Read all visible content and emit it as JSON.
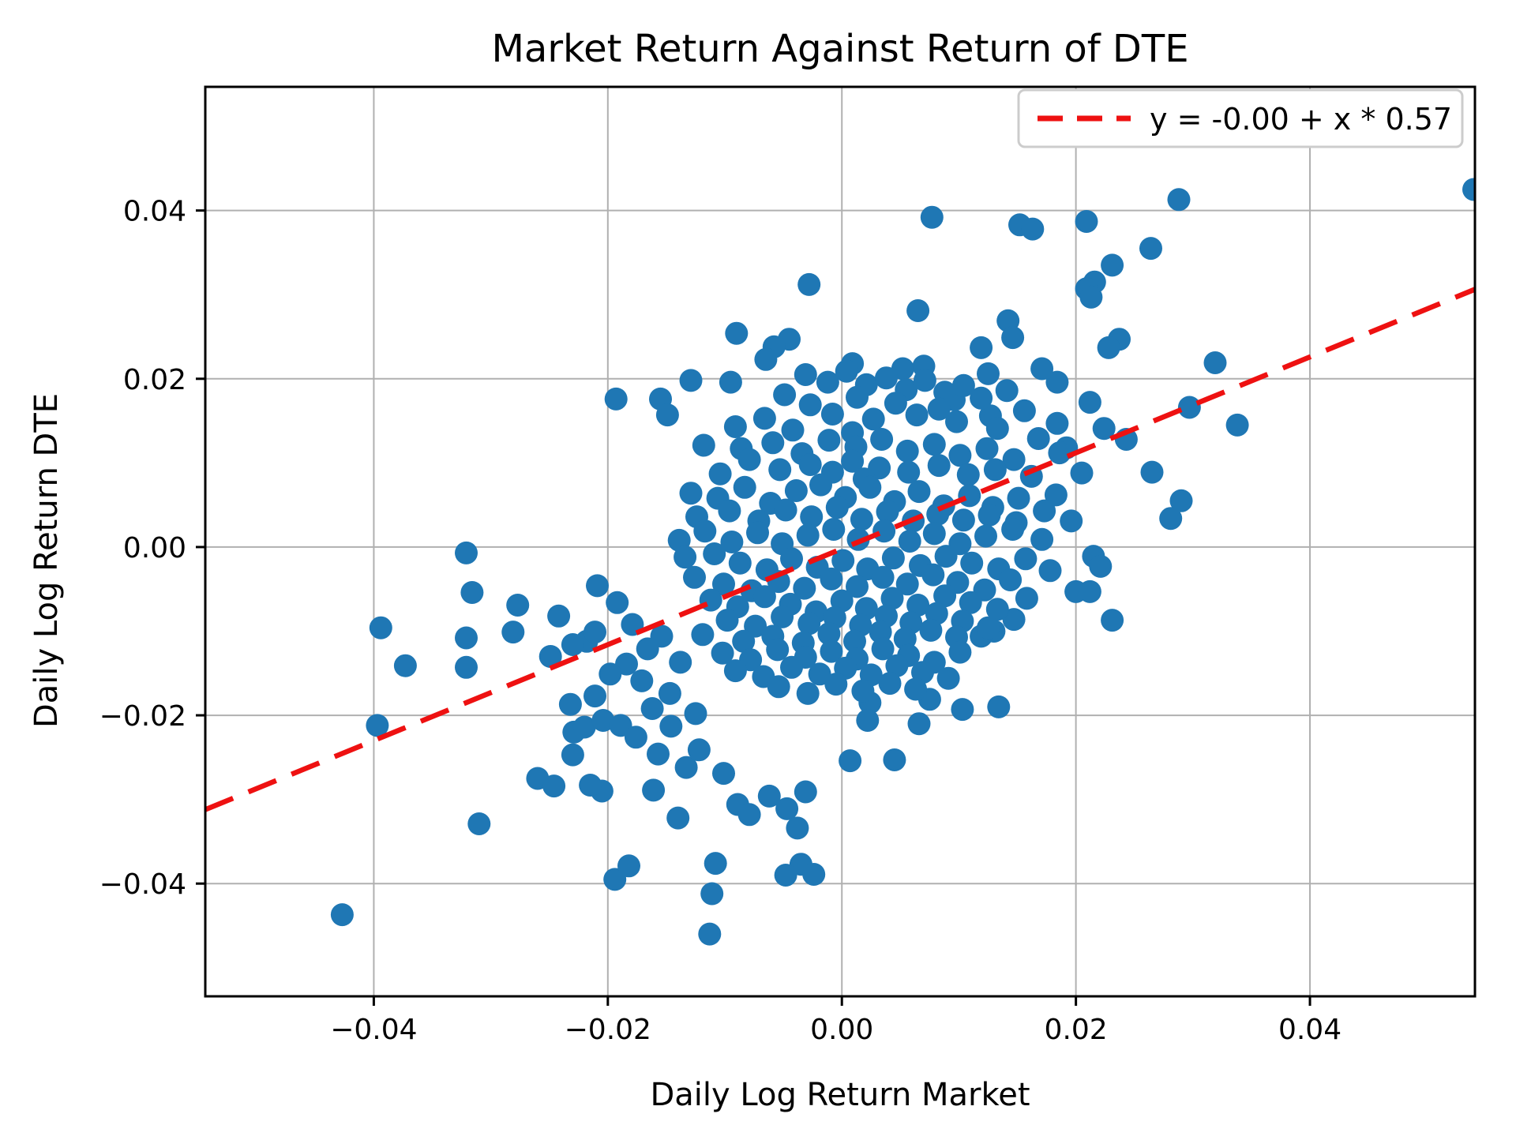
{
  "chart_data": {
    "type": "scatter",
    "title": "Market Return Against Return of DTE",
    "xlabel": "Daily Log Return Market",
    "ylabel": "Daily Log Return DTE",
    "xlim": [
      -0.0544,
      0.0541
    ],
    "ylim": [
      -0.0534,
      0.0547
    ],
    "xticks": [
      -0.04,
      -0.02,
      0.0,
      0.02,
      0.04
    ],
    "yticks": [
      -0.04,
      -0.02,
      0.0,
      0.02,
      0.04
    ],
    "grid": true,
    "grid_color": "#b0b0b0",
    "marker_color": "#1f77b4",
    "legend": {
      "label": "y = -0.00 + x * 0.57",
      "position": "upper right"
    },
    "trend": {
      "intercept": -0.0002,
      "slope": 0.57,
      "color": "#ee1111",
      "style": "dashed"
    },
    "points": [
      [
        0.054,
        0.0425
      ],
      [
        0.0288,
        0.0413
      ],
      [
        0.0077,
        0.0392
      ],
      [
        0.0209,
        0.0387
      ],
      [
        0.0152,
        0.0383
      ],
      [
        0.0163,
        0.0378
      ],
      [
        0.0264,
        0.0355
      ],
      [
        0.0231,
        0.0335
      ],
      [
        0.0216,
        0.0315
      ],
      [
        0.0209,
        0.0307
      ],
      [
        0.0213,
        0.0297
      ],
      [
        -0.0028,
        0.0312
      ],
      [
        0.0065,
        0.0281
      ],
      [
        0.0142,
        0.0269
      ],
      [
        0.0146,
        0.0249
      ],
      [
        0.0119,
        0.0237
      ],
      [
        0.0237,
        0.0247
      ],
      [
        0.0228,
        0.0237
      ],
      [
        0.0319,
        0.0219
      ],
      [
        0.0338,
        0.0145
      ],
      [
        0.029,
        0.0055
      ],
      [
        0.0281,
        0.0034
      ],
      [
        0.0265,
        0.0089
      ],
      [
        0.0297,
        0.0166
      ],
      [
        0.0224,
        0.0141
      ],
      [
        0.0243,
        0.0128
      ],
      [
        0.0212,
        0.0172
      ],
      [
        0.0184,
        0.0196
      ],
      [
        0.007,
        0.0215
      ],
      [
        0.0052,
        0.0212
      ],
      [
        0.0009,
        0.0218
      ],
      [
        -0.0045,
        0.0247
      ],
      [
        -0.0058,
        0.0238
      ],
      [
        -0.0065,
        0.0223
      ],
      [
        -0.0095,
        0.0196
      ],
      [
        -0.0129,
        0.0198
      ],
      [
        -0.0155,
        0.0176
      ],
      [
        -0.0193,
        0.0176
      ],
      [
        -0.0149,
        0.0157
      ],
      [
        0.0125,
        0.0206
      ],
      [
        0.0171,
        0.0212
      ],
      [
        0.0156,
        0.0162
      ],
      [
        0.0184,
        0.0147
      ],
      [
        0.0127,
        0.0156
      ],
      [
        0.0096,
        0.0175
      ],
      [
        -0.009,
        0.0254
      ],
      [
        -0.0321,
        -0.0007
      ],
      [
        -0.0316,
        -0.0054
      ],
      [
        -0.0394,
        -0.0096
      ],
      [
        -0.0277,
        -0.0069
      ],
      [
        -0.0281,
        -0.0101
      ],
      [
        -0.0321,
        -0.0108
      ],
      [
        -0.0242,
        -0.0082
      ],
      [
        -0.0373,
        -0.0141
      ],
      [
        -0.0321,
        -0.0143
      ],
      [
        -0.0218,
        -0.0112
      ],
      [
        -0.0211,
        -0.0101
      ],
      [
        -0.0249,
        -0.013
      ],
      [
        -0.023,
        -0.0116
      ],
      [
        -0.0397,
        -0.0212
      ],
      [
        -0.0232,
        -0.0187
      ],
      [
        -0.0211,
        -0.0177
      ],
      [
        -0.0229,
        -0.022
      ],
      [
        -0.022,
        -0.0214
      ],
      [
        -0.0204,
        -0.0206
      ],
      [
        -0.023,
        -0.0247
      ],
      [
        -0.026,
        -0.0275
      ],
      [
        -0.0246,
        -0.0284
      ],
      [
        -0.031,
        -0.0329
      ],
      [
        -0.0209,
        -0.0046
      ],
      [
        -0.0427,
        -0.0437
      ],
      [
        -0.0161,
        -0.0289
      ],
      [
        -0.014,
        -0.0322
      ],
      [
        -0.0108,
        -0.0376
      ],
      [
        -0.0035,
        -0.0377
      ],
      [
        -0.0111,
        -0.0412
      ],
      [
        -0.0113,
        -0.046
      ],
      [
        -0.0194,
        -0.0395
      ],
      [
        -0.0182,
        -0.0379
      ],
      [
        -0.0205,
        -0.029
      ],
      [
        -0.0215,
        -0.0283
      ],
      [
        -0.0189,
        -0.0212
      ],
      [
        -0.0176,
        -0.0226
      ],
      [
        -0.0157,
        -0.0246
      ],
      [
        -0.0133,
        -0.0262
      ],
      [
        -0.0122,
        -0.0241
      ],
      [
        -0.0101,
        -0.0269
      ],
      [
        -0.0089,
        -0.0306
      ],
      [
        -0.0079,
        -0.0318
      ],
      [
        -0.0062,
        -0.0296
      ],
      [
        -0.0047,
        -0.0311
      ],
      [
        -0.0038,
        -0.0334
      ],
      [
        -0.0031,
        -0.0291
      ],
      [
        -0.0024,
        -0.0389
      ],
      [
        -0.0048,
        -0.039
      ],
      [
        -0.0192,
        -0.0066
      ],
      [
        -0.0179,
        -0.0092
      ],
      [
        -0.0166,
        -0.0121
      ],
      [
        -0.0184,
        -0.0139
      ],
      [
        -0.0171,
        -0.0159
      ],
      [
        -0.0198,
        -0.0151
      ],
      [
        -0.0154,
        -0.0106
      ],
      [
        -0.0138,
        -0.0137
      ],
      [
        -0.0147,
        -0.0174
      ],
      [
        -0.0162,
        -0.0192
      ],
      [
        -0.0146,
        -0.0213
      ],
      [
        -0.0125,
        -0.0198
      ],
      [
        0.0024,
        -0.0185
      ],
      [
        0.0022,
        -0.0206
      ],
      [
        0.0066,
        -0.021
      ],
      [
        0.0075,
        -0.0181
      ],
      [
        0.0103,
        -0.0193
      ],
      [
        0.0134,
        -0.019
      ],
      [
        0.0158,
        -0.0061
      ],
      [
        0.02,
        -0.0053
      ],
      [
        0.0212,
        -0.0053
      ],
      [
        0.0215,
        -0.0011
      ],
      [
        0.0221,
        -0.0023
      ],
      [
        0.0231,
        -0.0087
      ],
      [
        0.013,
        -0.01
      ],
      [
        0.0119,
        -0.0106
      ],
      [
        0.0147,
        -0.0086
      ],
      [
        0.0178,
        -0.0028
      ],
      [
        0.0045,
        -0.0253
      ],
      [
        0.0007,
        -0.0254
      ],
      [
        0.0183,
        0.0062
      ],
      [
        0.0196,
        0.0031
      ],
      [
        0.0205,
        0.0088
      ],
      [
        0.0192,
        0.0118
      ],
      [
        -0.0031,
        0.0205
      ],
      [
        -0.0012,
        0.0196
      ],
      [
        0.0004,
        0.0209
      ],
      [
        0.0021,
        0.0193
      ],
      [
        0.0038,
        0.0201
      ],
      [
        0.0055,
        0.0187
      ],
      [
        0.0071,
        0.0198
      ],
      [
        0.0088,
        0.0184
      ],
      [
        0.0104,
        0.0192
      ],
      [
        0.0013,
        0.0178
      ],
      [
        -0.0049,
        0.0181
      ],
      [
        -0.0027,
        0.0169
      ],
      [
        0.0046,
        0.0171
      ],
      [
        0.0083,
        0.0164
      ],
      [
        0.0119,
        0.0177
      ],
      [
        0.0141,
        0.0186
      ],
      [
        -0.0008,
        0.0158
      ],
      [
        0.0027,
        0.0152
      ],
      [
        0.0064,
        0.0157
      ],
      [
        0.0098,
        0.0149
      ],
      [
        0.0133,
        0.0141
      ],
      [
        -0.0066,
        0.0153
      ],
      [
        -0.0091,
        0.0143
      ],
      [
        -0.0042,
        0.0139
      ],
      [
        0.0009,
        0.0136
      ],
      [
        0.0168,
        0.0129
      ],
      [
        0.0186,
        0.0112
      ],
      [
        -0.0118,
        0.0121
      ],
      [
        -0.0086,
        0.0117
      ],
      [
        -0.0059,
        0.0124
      ],
      [
        -0.0034,
        0.0111
      ],
      [
        -0.0011,
        0.0127
      ],
      [
        0.0012,
        0.0119
      ],
      [
        0.0034,
        0.0128
      ],
      [
        0.0056,
        0.0114
      ],
      [
        0.0079,
        0.0122
      ],
      [
        0.0101,
        0.0109
      ],
      [
        0.0124,
        0.0117
      ],
      [
        0.0147,
        0.0104
      ],
      [
        0.0009,
        0.0102
      ],
      [
        -0.0027,
        0.0098
      ],
      [
        -0.0053,
        0.0092
      ],
      [
        -0.0079,
        0.0104
      ],
      [
        0.0032,
        0.0094
      ],
      [
        0.0057,
        0.0089
      ],
      [
        0.0083,
        0.0097
      ],
      [
        0.0108,
        0.0086
      ],
      [
        0.0131,
        0.0092
      ],
      [
        0.0162,
        0.0084
      ],
      [
        -0.0104,
        0.0087
      ],
      [
        -0.0008,
        0.0089
      ],
      [
        0.0019,
        0.0081
      ],
      [
        -0.0129,
        0.0064
      ],
      [
        -0.0106,
        0.0058
      ],
      [
        -0.0083,
        0.0071
      ],
      [
        -0.0061,
        0.0052
      ],
      [
        -0.0039,
        0.0067
      ],
      [
        -0.0018,
        0.0074
      ],
      [
        0.0003,
        0.0059
      ],
      [
        0.0024,
        0.0071
      ],
      [
        0.0045,
        0.0054
      ],
      [
        0.0066,
        0.0066
      ],
      [
        0.0087,
        0.0049
      ],
      [
        0.0109,
        0.0061
      ],
      [
        0.0129,
        0.0047
      ],
      [
        0.0151,
        0.0058
      ],
      [
        0.0173,
        0.0043
      ],
      [
        -0.0124,
        0.0036
      ],
      [
        -0.0096,
        0.0043
      ],
      [
        -0.0071,
        0.0031
      ],
      [
        -0.0048,
        0.0044
      ],
      [
        -0.0026,
        0.0036
      ],
      [
        -0.0004,
        0.0047
      ],
      [
        0.0017,
        0.0033
      ],
      [
        0.0039,
        0.0042
      ],
      [
        0.0061,
        0.0031
      ],
      [
        0.0082,
        0.0039
      ],
      [
        0.0104,
        0.0032
      ],
      [
        0.0126,
        0.0038
      ],
      [
        0.0149,
        0.0029
      ],
      [
        -0.0139,
        0.0008
      ],
      [
        -0.0117,
        0.0019
      ],
      [
        -0.0094,
        0.0006
      ],
      [
        -0.0072,
        0.0017
      ],
      [
        -0.0051,
        0.0004
      ],
      [
        -0.0029,
        0.0014
      ],
      [
        -0.0007,
        0.0021
      ],
      [
        0.0014,
        0.0009
      ],
      [
        0.0036,
        0.0019
      ],
      [
        0.0058,
        0.0007
      ],
      [
        0.0079,
        0.0016
      ],
      [
        0.0101,
        0.0004
      ],
      [
        0.0123,
        0.0013
      ],
      [
        0.0146,
        0.0021
      ],
      [
        0.0171,
        0.0009
      ],
      [
        -0.0134,
        -0.0012
      ],
      [
        -0.0109,
        -0.0008
      ],
      [
        -0.0087,
        -0.0019
      ],
      [
        -0.0064,
        -0.0027
      ],
      [
        -0.0043,
        -0.0014
      ],
      [
        -0.0021,
        -0.0024
      ],
      [
        0.0001,
        -0.0016
      ],
      [
        0.0022,
        -0.0026
      ],
      [
        0.0044,
        -0.0013
      ],
      [
        0.0067,
        -0.0022
      ],
      [
        0.0089,
        -0.0011
      ],
      [
        0.0111,
        -0.0019
      ],
      [
        0.0134,
        -0.0026
      ],
      [
        0.0157,
        -0.0014
      ],
      [
        -0.0126,
        -0.0036
      ],
      [
        -0.0101,
        -0.0044
      ],
      [
        -0.0077,
        -0.0052
      ],
      [
        -0.0054,
        -0.0041
      ],
      [
        -0.0032,
        -0.0049
      ],
      [
        -0.0009,
        -0.0038
      ],
      [
        0.0013,
        -0.0047
      ],
      [
        0.0035,
        -0.0036
      ],
      [
        0.0056,
        -0.0044
      ],
      [
        0.0078,
        -0.0033
      ],
      [
        0.0099,
        -0.0042
      ],
      [
        0.0122,
        -0.0051
      ],
      [
        0.0144,
        -0.0039
      ],
      [
        -0.0112,
        -0.0063
      ],
      [
        -0.0089,
        -0.0071
      ],
      [
        -0.0066,
        -0.0059
      ],
      [
        -0.0044,
        -0.0068
      ],
      [
        -0.0022,
        -0.0077
      ],
      [
        0.0,
        -0.0064
      ],
      [
        0.0021,
        -0.0073
      ],
      [
        0.0043,
        -0.0061
      ],
      [
        0.0065,
        -0.0069
      ],
      [
        0.0088,
        -0.0058
      ],
      [
        0.011,
        -0.0066
      ],
      [
        0.0133,
        -0.0074
      ],
      [
        -0.0098,
        -0.0087
      ],
      [
        -0.0074,
        -0.0094
      ],
      [
        -0.0051,
        -0.0083
      ],
      [
        -0.0028,
        -0.0091
      ],
      [
        -0.0006,
        -0.0084
      ],
      [
        0.0016,
        -0.0093
      ],
      [
        0.0038,
        -0.0082
      ],
      [
        0.0059,
        -0.009
      ],
      [
        0.0081,
        -0.0079
      ],
      [
        0.0103,
        -0.0088
      ],
      [
        0.0125,
        -0.0096
      ],
      [
        -0.0119,
        -0.0104
      ],
      [
        -0.0084,
        -0.0112
      ],
      [
        -0.0059,
        -0.0106
      ],
      [
        -0.0033,
        -0.0114
      ],
      [
        -0.0011,
        -0.0103
      ],
      [
        0.0011,
        -0.0112
      ],
      [
        0.0033,
        -0.0101
      ],
      [
        0.0054,
        -0.0109
      ],
      [
        0.0076,
        -0.0099
      ],
      [
        0.0098,
        -0.0107
      ],
      [
        -0.0102,
        -0.0126
      ],
      [
        -0.0078,
        -0.0134
      ],
      [
        -0.0055,
        -0.0122
      ],
      [
        -0.0031,
        -0.0131
      ],
      [
        -0.0009,
        -0.0124
      ],
      [
        0.0013,
        -0.0133
      ],
      [
        0.0035,
        -0.0121
      ],
      [
        0.0057,
        -0.0129
      ],
      [
        0.0079,
        -0.0137
      ],
      [
        0.0101,
        -0.0125
      ],
      [
        -0.0091,
        -0.0147
      ],
      [
        -0.0067,
        -0.0154
      ],
      [
        -0.0043,
        -0.0143
      ],
      [
        -0.0019,
        -0.0151
      ],
      [
        0.0003,
        -0.0144
      ],
      [
        0.0025,
        -0.0152
      ],
      [
        0.0047,
        -0.0141
      ],
      [
        0.0069,
        -0.0149
      ],
      [
        0.0091,
        -0.0156
      ],
      [
        -0.0054,
        -0.0166
      ],
      [
        -0.0029,
        -0.0174
      ],
      [
        -0.0005,
        -0.0163
      ],
      [
        0.0018,
        -0.0171
      ],
      [
        0.0041,
        -0.0162
      ],
      [
        0.0063,
        -0.0169
      ]
    ]
  }
}
